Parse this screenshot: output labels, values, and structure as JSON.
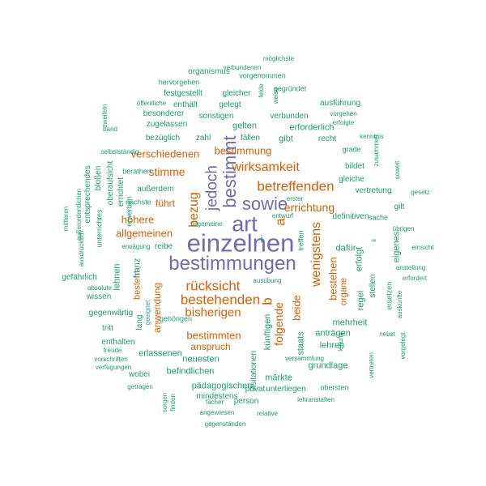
{
  "colors": {
    "purple": "#6f6bb5",
    "orange": "#d95f02",
    "green": "#1b9e77"
  },
  "words": [
    {
      "text": "einzelnen",
      "color": "purple"
    },
    {
      "text": "bestimmungen",
      "color": "purple"
    },
    {
      "text": "art",
      "color": "purple"
    },
    {
      "text": "sowie",
      "color": "purple"
    },
    {
      "text": "bestimmt",
      "color": "purple"
    },
    {
      "text": "jedoch",
      "color": "purple"
    },
    {
      "text": "a",
      "color": "orange"
    },
    {
      "text": "b",
      "color": "orange"
    },
    {
      "text": "bezug",
      "color": "orange"
    },
    {
      "text": "betreffenden",
      "color": "orange"
    },
    {
      "text": "wirksamkeit",
      "color": "orange"
    },
    {
      "text": "bestimmung",
      "color": "orange"
    },
    {
      "text": "verschiedenen",
      "color": "orange"
    },
    {
      "text": "stimme",
      "color": "orange"
    },
    {
      "text": "errichtung",
      "color": "orange"
    },
    {
      "text": "höhere",
      "color": "orange"
    },
    {
      "text": "allgemeinen",
      "color": "orange"
    },
    {
      "text": "führt",
      "color": "orange"
    },
    {
      "text": "rücksicht",
      "color": "orange"
    },
    {
      "text": "bestehenden",
      "color": "orange"
    },
    {
      "text": "bisherigen",
      "color": "orange"
    },
    {
      "text": "wenigstens",
      "color": "orange"
    },
    {
      "text": "bestehen",
      "color": "orange"
    },
    {
      "text": "beide",
      "color": "orange"
    },
    {
      "text": "folgende",
      "color": "orange"
    },
    {
      "text": "bestimmten",
      "color": "orange"
    },
    {
      "text": "anspruch",
      "color": "orange"
    },
    {
      "text": "anwendung",
      "color": "orange"
    },
    {
      "text": "besteht",
      "color": "orange"
    },
    {
      "text": "organe",
      "color": "orange"
    },
    {
      "text": "i",
      "color": "green"
    },
    {
      "text": "organismus",
      "color": "green"
    },
    {
      "text": "verbundenen",
      "color": "green"
    },
    {
      "text": "möglichste",
      "color": "green"
    },
    {
      "text": "vorgenommen",
      "color": "green"
    },
    {
      "text": "hervorgehen",
      "color": "green"
    },
    {
      "text": "gegründet",
      "color": "green"
    },
    {
      "text": "festgestellt",
      "color": "green"
    },
    {
      "text": "gleicher",
      "color": "green"
    },
    {
      "text": "felde",
      "color": "green"
    },
    {
      "text": "weise",
      "color": "green"
    },
    {
      "text": "öffentliche",
      "color": "green"
    },
    {
      "text": "enthält",
      "color": "green"
    },
    {
      "text": "gelegt",
      "color": "green"
    },
    {
      "text": "ausführung",
      "color": "green"
    },
    {
      "text": "besonderer",
      "color": "green"
    },
    {
      "text": "sonstigen",
      "color": "green"
    },
    {
      "text": "verbunden",
      "color": "green"
    },
    {
      "text": "vorgehen",
      "color": "green"
    },
    {
      "text": "erfolgte",
      "color": "green"
    },
    {
      "text": "zugelassen",
      "color": "green"
    },
    {
      "text": "band",
      "color": "green"
    },
    {
      "text": "zweifeln",
      "color": "green"
    },
    {
      "text": "gelten",
      "color": "green"
    },
    {
      "text": "erforderlich",
      "color": "green"
    },
    {
      "text": "bezüglich",
      "color": "green"
    },
    {
      "text": "selbstständig",
      "color": "green"
    },
    {
      "text": "zahl",
      "color": "green"
    },
    {
      "text": "fällen",
      "color": "green"
    },
    {
      "text": "gibt",
      "color": "green"
    },
    {
      "text": "recht",
      "color": "green"
    },
    {
      "text": "kenntnis",
      "color": "green"
    },
    {
      "text": "zusammen",
      "color": "green"
    },
    {
      "text": "grade",
      "color": "green"
    },
    {
      "text": "soweit",
      "color": "green"
    },
    {
      "text": "oberaufsicht",
      "color": "green"
    },
    {
      "text": "berathen",
      "color": "green"
    },
    {
      "text": "bildet",
      "color": "green"
    },
    {
      "text": "gleiche",
      "color": "green"
    },
    {
      "text": "bloßen",
      "color": "green"
    },
    {
      "text": "errichtet",
      "color": "green"
    },
    {
      "text": "außerdem",
      "color": "green"
    },
    {
      "text": "vertretung",
      "color": "green"
    },
    {
      "text": "gesetz",
      "color": "green"
    },
    {
      "text": "mittleren",
      "color": "green"
    },
    {
      "text": "außerordentlichen",
      "color": "green"
    },
    {
      "text": "entsprechendes",
      "color": "green"
    },
    {
      "text": "unterrichtes",
      "color": "green"
    },
    {
      "text": "ausdrücklich",
      "color": "green"
    },
    {
      "text": "nächste",
      "color": "green"
    },
    {
      "text": "erster",
      "color": "green"
    },
    {
      "text": "erwerben",
      "color": "green"
    },
    {
      "text": "gilt",
      "color": "green"
    },
    {
      "text": "entwurf",
      "color": "green"
    },
    {
      "text": "sache",
      "color": "green"
    },
    {
      "text": "definitiven",
      "color": "green"
    },
    {
      "text": "übrigen",
      "color": "green"
    },
    {
      "text": "allgemeine",
      "color": "green"
    },
    {
      "text": "ii",
      "color": "green"
    },
    {
      "text": "einsicht",
      "color": "green"
    },
    {
      "text": "erwägung",
      "color": "green"
    },
    {
      "text": "reibe",
      "color": "green"
    },
    {
      "text": "treffen",
      "color": "green"
    },
    {
      "text": "dafür",
      "color": "green"
    },
    {
      "text": "erfolgt",
      "color": "green"
    },
    {
      "text": "eigenes",
      "color": "green"
    },
    {
      "text": "franz",
      "color": "green"
    },
    {
      "text": "lehnen",
      "color": "green"
    },
    {
      "text": "anstellung",
      "color": "green"
    },
    {
      "text": "erfordert",
      "color": "green"
    },
    {
      "text": "gefährlich",
      "color": "green"
    },
    {
      "text": "ausübung",
      "color": "green"
    },
    {
      "text": "stellen",
      "color": "green"
    },
    {
      "text": "absolute",
      "color": "green"
    },
    {
      "text": "wissen",
      "color": "green"
    },
    {
      "text": "regel",
      "color": "green"
    },
    {
      "text": "ersetzen",
      "color": "green"
    },
    {
      "text": "auskünfte",
      "color": "green"
    },
    {
      "text": "geeignet",
      "color": "green"
    },
    {
      "text": "gegenwärtig",
      "color": "green"
    },
    {
      "text": "lang",
      "color": "green"
    },
    {
      "text": "gehörigen",
      "color": "green"
    },
    {
      "text": "mehrheit",
      "color": "green"
    },
    {
      "text": "tritt",
      "color": "green"
    },
    {
      "text": "künftigen",
      "color": "green"
    },
    {
      "text": "anträgen",
      "color": "green"
    },
    {
      "text": "nebst",
      "color": "green"
    },
    {
      "text": "enthalten",
      "color": "green"
    },
    {
      "text": "staats",
      "color": "green"
    },
    {
      "text": "lehren",
      "color": "green"
    },
    {
      "text": "leitung",
      "color": "green"
    },
    {
      "text": "vorgelegt",
      "color": "green"
    },
    {
      "text": "freude",
      "color": "green"
    },
    {
      "text": "erlassenen",
      "color": "green"
    },
    {
      "text": "neuesten",
      "color": "green"
    },
    {
      "text": "grundlage",
      "color": "green"
    },
    {
      "text": "vertreten",
      "color": "green"
    },
    {
      "text": "vorschriften",
      "color": "green"
    },
    {
      "text": "verfügungen",
      "color": "green"
    },
    {
      "text": "befindlichen",
      "color": "green"
    },
    {
      "text": "visitationen",
      "color": "green"
    },
    {
      "text": "versammlung",
      "color": "green"
    },
    {
      "text": "wobei",
      "color": "green"
    },
    {
      "text": "märkte",
      "color": "green"
    },
    {
      "text": "getragen",
      "color": "green"
    },
    {
      "text": "pädagogischen",
      "color": "green"
    },
    {
      "text": "obersten",
      "color": "green"
    },
    {
      "text": "mindestens",
      "color": "green"
    },
    {
      "text": "privat",
      "color": "green"
    },
    {
      "text": "unterliegen",
      "color": "green"
    },
    {
      "text": "sorgen",
      "color": "green"
    },
    {
      "text": "finden",
      "color": "green"
    },
    {
      "text": "fächer",
      "color": "green"
    },
    {
      "text": "person",
      "color": "green"
    },
    {
      "text": "lehranstalten",
      "color": "green"
    },
    {
      "text": "angewiesen",
      "color": "green"
    },
    {
      "text": "relative",
      "color": "green"
    },
    {
      "text": "gegenständen",
      "color": "green"
    },
    {
      "text": "betreffende",
      "color": "green"
    },
    {
      "text": "regelung",
      "color": "green"
    }
  ]
}
